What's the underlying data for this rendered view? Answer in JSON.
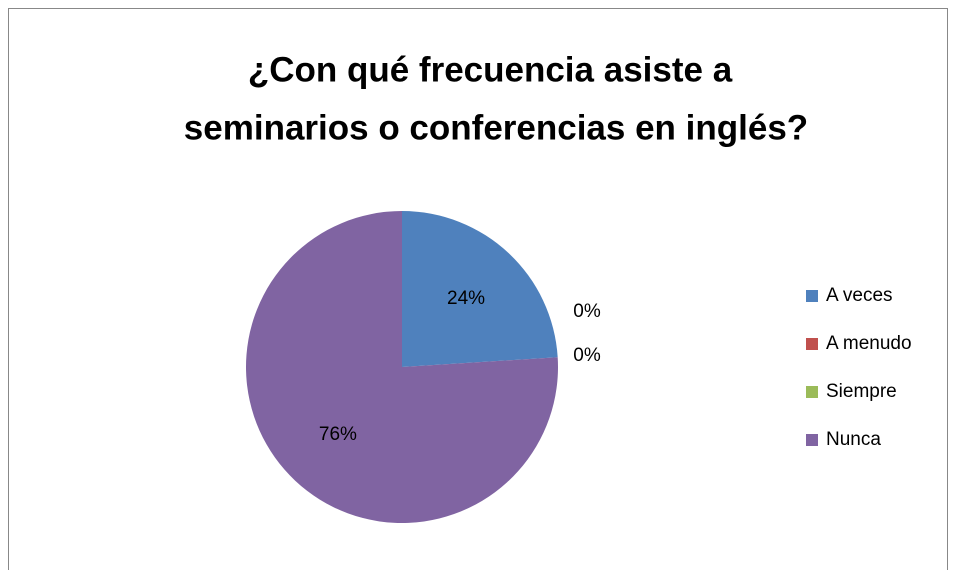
{
  "chart_data": {
    "type": "pie",
    "title": [
      "¿Con qué frecuencia asiste a",
      "seminarios o conferencias en inglés?"
    ],
    "categories": [
      "A veces",
      "A menudo",
      "Siempre",
      "Nunca"
    ],
    "values": [
      24,
      0,
      0,
      76
    ],
    "value_labels": [
      "24%",
      "0%",
      "0%",
      "76%"
    ],
    "colors": [
      "#4f81bd",
      "#c0504d",
      "#9bbb59",
      "#8064a2"
    ],
    "legend": "right"
  }
}
